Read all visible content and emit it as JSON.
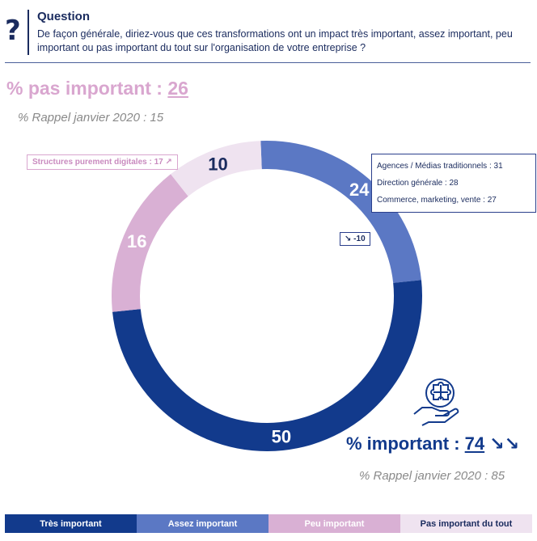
{
  "question": {
    "icon": "question-mark-icon",
    "icon_glyph": "?",
    "title": "Question",
    "text": "De façon générale, diriez-vous que ces transformations ont un impact très important, assez important, peu important ou pas important du tout sur l'organisation de votre entreprise ?"
  },
  "pas_important": {
    "label": "% pas important : ",
    "value": "26",
    "rappel": "% Rappel janvier 2020 : 15"
  },
  "important": {
    "label": "% important : ",
    "value": "74",
    "arrows": "↘↘",
    "rappel": "% Rappel janvier 2020 : 85"
  },
  "callouts": {
    "digital": "Structures purement digitales : 17",
    "digital_arrow": "↗",
    "agences": "Agences / Médias traditionnels : 31",
    "direction": "Direction générale : 28",
    "commerce": "Commerce, marketing, vente : 27",
    "minus_arrow": "↘",
    "minus": "-10"
  },
  "colors": {
    "tres": "#123a8c",
    "assez": "#5b78c4",
    "peu": "#d9b0d4",
    "pas": "#efe3f0"
  },
  "chart_data": {
    "type": "pie",
    "donut": true,
    "categories": [
      "Très important",
      "Assez important",
      "Peu important",
      "Pas important du tout"
    ],
    "values": [
      50,
      24,
      16,
      10
    ],
    "legend_position": "bottom"
  }
}
